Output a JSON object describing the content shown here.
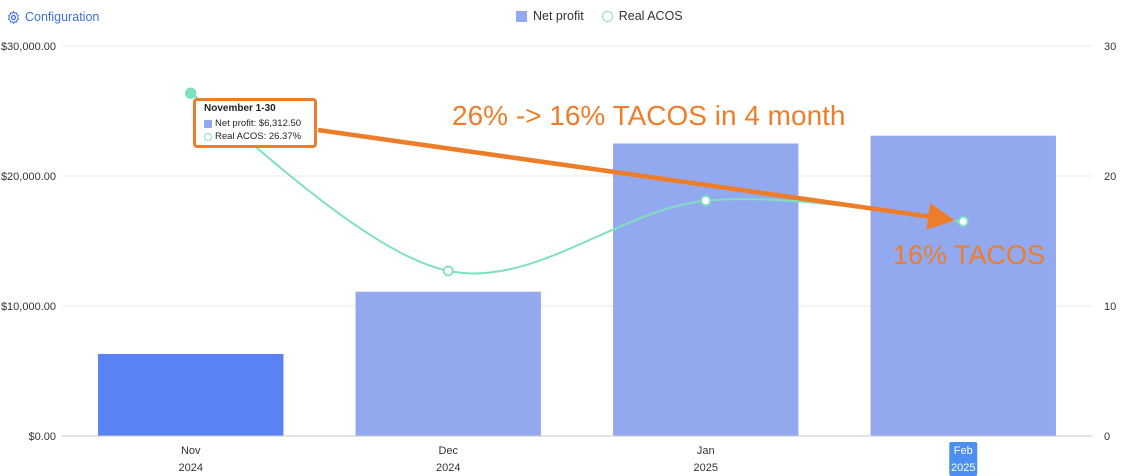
{
  "toolbar": {
    "config_label": "Configuration"
  },
  "legend": [
    {
      "label": "Net profit",
      "marker": "square"
    },
    {
      "label": "Real ACOS",
      "marker": "circle"
    }
  ],
  "tooltip": {
    "title": "November 1-30",
    "rows": [
      "Net profit: $6,312.50",
      "Real ACOS: 26.37%"
    ]
  },
  "annotations": {
    "main": "26% -> 16% TACOS in 4 month",
    "sub": "16% TACOS"
  },
  "colors": {
    "bar": "#93a9ef",
    "bar_highlight": "#5b82f3",
    "line": "#7ee0bf",
    "annotation": "#ee7d2a",
    "grid": "#e8e8e8",
    "selected_tick_bg": "#4d8ff0"
  },
  "chart_data": {
    "type": "bar",
    "categories": [
      [
        "Nov",
        "2024"
      ],
      [
        "Dec",
        "2024"
      ],
      [
        "Jan",
        "2025"
      ],
      [
        "Feb",
        "2025"
      ]
    ],
    "selected_category": 3,
    "highlighted_bar": 0,
    "series": [
      {
        "name": "Net profit",
        "type": "bar",
        "axis": "left",
        "values": [
          6312.5,
          11100,
          22500,
          23100
        ]
      },
      {
        "name": "Real ACOS",
        "type": "line",
        "axis": "right",
        "values": [
          26.37,
          12.7,
          18.1,
          16.5
        ]
      }
    ],
    "y_left": {
      "min": 0,
      "max": 30000,
      "ticks": [
        "$0.00",
        "$10,000.00",
        "$20,000.00",
        "$30,000.00"
      ]
    },
    "y_right": {
      "min": 0,
      "max": 30,
      "ticks": [
        "0",
        "10",
        "20",
        "30"
      ]
    },
    "grid": true,
    "legend_position": "top-center"
  }
}
